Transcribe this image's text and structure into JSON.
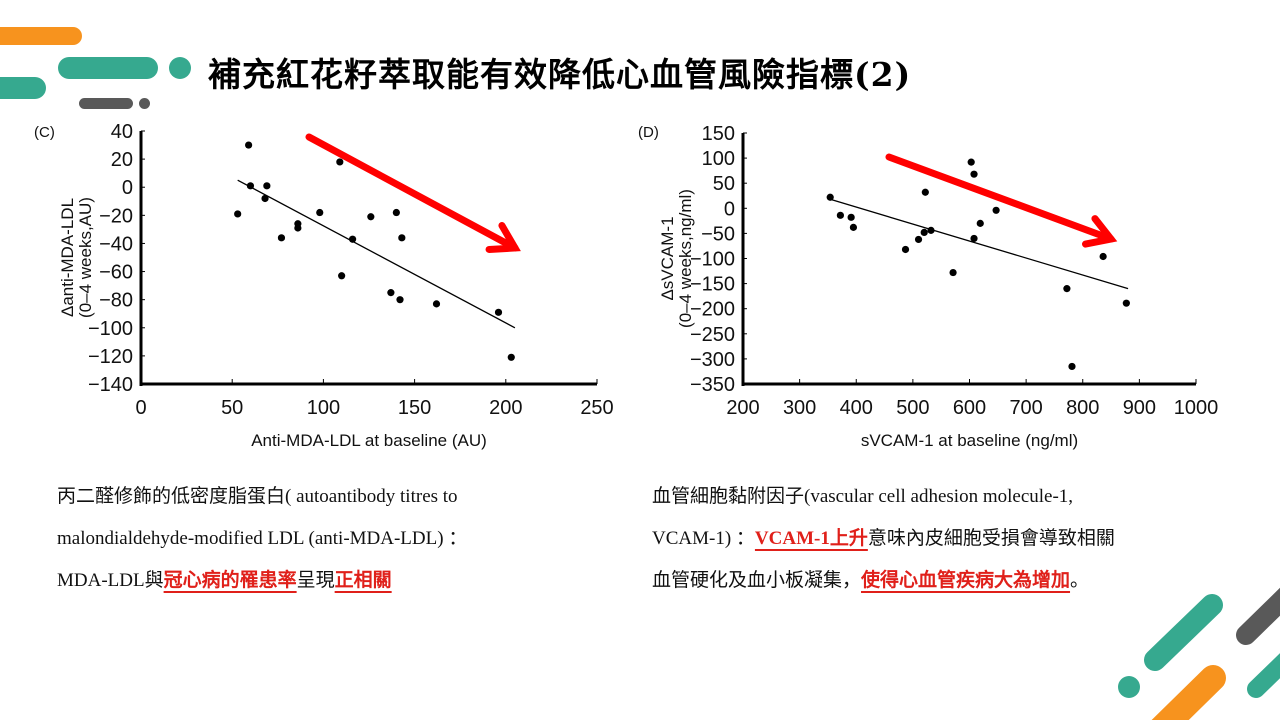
{
  "title": "補充紅花籽萃取能有效降低心血管風險指標(2)",
  "colors": {
    "teal": "#36a98f",
    "orange": "#f7931e",
    "gray": "#595959",
    "red_arrow": "#ff0000",
    "highlight": "#e0201a"
  },
  "chart_data": [
    {
      "type": "scatter",
      "panel_label": "(C)",
      "title": "",
      "xlabel": "Anti-MDA-LDL at baseline (AU)",
      "ylabel_line1": "Δanti-MDA-LDL",
      "ylabel_line2": "(0–4 weeks,AU)",
      "xlim": [
        0,
        250
      ],
      "ylim": [
        -140,
        40
      ],
      "xticks": [
        0,
        50,
        100,
        150,
        200,
        250
      ],
      "yticks": [
        40,
        20,
        0,
        -20,
        -40,
        -60,
        -80,
        -100,
        -120,
        -140
      ],
      "grid": false,
      "points": [
        [
          53,
          -19
        ],
        [
          59,
          30
        ],
        [
          60,
          1
        ],
        [
          69,
          1
        ],
        [
          68,
          -8
        ],
        [
          77,
          -36
        ],
        [
          86,
          -26
        ],
        [
          86,
          -29
        ],
        [
          98,
          -18
        ],
        [
          109,
          18
        ],
        [
          110,
          -63
        ],
        [
          116,
          -37
        ],
        [
          126,
          -21
        ],
        [
          137,
          -75
        ],
        [
          140,
          -18
        ],
        [
          143,
          -36
        ],
        [
          142,
          -80
        ],
        [
          162,
          -83
        ],
        [
          196,
          -89
        ],
        [
          203,
          -121
        ]
      ],
      "regression_line": [
        [
          53,
          5
        ],
        [
          205,
          -100
        ]
      ],
      "trend_arrow": "decreasing"
    },
    {
      "type": "scatter",
      "panel_label": "(D)",
      "title": "",
      "xlabel": "sVCAM-1 at baseline (ng/ml)",
      "ylabel_line1": "ΔsVCAM-1",
      "ylabel_line2": "(0–4 weeks,ng/ml)",
      "xlim": [
        200,
        1000
      ],
      "ylim": [
        -350,
        150
      ],
      "xticks": [
        200,
        300,
        400,
        500,
        600,
        700,
        800,
        900,
        1000
      ],
      "yticks": [
        150,
        100,
        50,
        0,
        -50,
        -100,
        -150,
        -200,
        -250,
        -300,
        -350
      ],
      "grid": false,
      "points": [
        [
          354,
          22
        ],
        [
          372,
          -14
        ],
        [
          391,
          -18
        ],
        [
          395,
          -38
        ],
        [
          487,
          -82
        ],
        [
          510,
          -62
        ],
        [
          522,
          32
        ],
        [
          520,
          -48
        ],
        [
          532,
          -44
        ],
        [
          571,
          -128
        ],
        [
          603,
          92
        ],
        [
          608,
          68
        ],
        [
          608,
          -60
        ],
        [
          619,
          -30
        ],
        [
          647,
          -4
        ],
        [
          772,
          -160
        ],
        [
          781,
          -315
        ],
        [
          836,
          -96
        ],
        [
          877,
          -189
        ]
      ],
      "regression_line": [
        [
          354,
          18
        ],
        [
          880,
          -160
        ]
      ],
      "trend_arrow": "decreasing"
    }
  ],
  "left_text": {
    "line1": "丙二醛修飾的低密度脂蛋白( autoantibody titres to",
    "line2": "malondialdehyde-modified LDL (anti-MDA-LDL) ：",
    "line3_a": "MDA-LDL與",
    "line3_hl1": "冠心病的罹患率",
    "line3_b": "呈現",
    "line3_hl2": "正相關"
  },
  "right_text": {
    "line1": "血管細胞黏附因子(vascular cell adhesion molecule-1,",
    "line2_a": "VCAM-1) ：",
    "line2_hl": "VCAM-1上升",
    "line2_b": "意味內皮細胞受損會導致相關",
    "line3_a": "血管硬化及血小板凝集，",
    "line3_hl": "使得心血管疾病大為增加",
    "line3_b": "。"
  }
}
